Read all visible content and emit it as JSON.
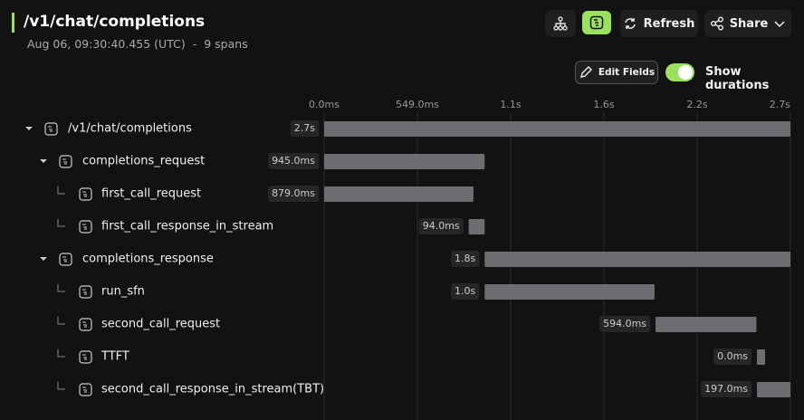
{
  "header": {
    "title": "/v1/chat/completions",
    "timestamp": "Aug 06, 09:30:40.455 (UTC)",
    "separator": "-",
    "span_count": "9 spans"
  },
  "toolbar": {
    "refresh": "Refresh",
    "share": "Share",
    "edit_fields": "Edit Fields",
    "show_durations": "Show durations"
  },
  "timeline": {
    "xlim": [
      0,
      2745
    ],
    "ticks": [
      {
        "value": 0,
        "label": "0.0ms"
      },
      {
        "value": 549,
        "label": "549.0ms"
      },
      {
        "value": 1098,
        "label": "1.1s"
      },
      {
        "value": 1647,
        "label": "1.6s"
      },
      {
        "value": 2196,
        "label": "2.2s"
      },
      {
        "value": 2745,
        "label": "2.7s"
      }
    ],
    "spans": [
      {
        "name": "/v1/chat/completions",
        "duration_label": "2.7s",
        "start": 0,
        "duration": 2745,
        "children": [
          {
            "name": "completions_request",
            "duration_label": "945.0ms",
            "start": 0,
            "duration": 945,
            "children": [
              {
                "name": "first_call_request",
                "duration_label": "879.0ms",
                "start": 0,
                "duration": 879
              },
              {
                "name": "first_call_response_in_stream",
                "duration_label": "94.0ms",
                "start": 851,
                "duration": 94
              }
            ]
          },
          {
            "name": "completions_response",
            "duration_label": "1.8s",
            "start": 945,
            "duration": 1800,
            "children": [
              {
                "name": "run_sfn",
                "duration_label": "1.0s",
                "start": 945,
                "duration": 1000
              },
              {
                "name": "second_call_request",
                "duration_label": "594.0ms",
                "start": 1951,
                "duration": 594
              },
              {
                "name": "TTFT",
                "duration_label": "0.0ms",
                "start": 2548,
                "duration": 0
              },
              {
                "name": "second_call_response_in_stream(TBT)",
                "duration_label": "197.0ms",
                "start": 2548,
                "duration": 197
              }
            ]
          }
        ]
      }
    ]
  }
}
